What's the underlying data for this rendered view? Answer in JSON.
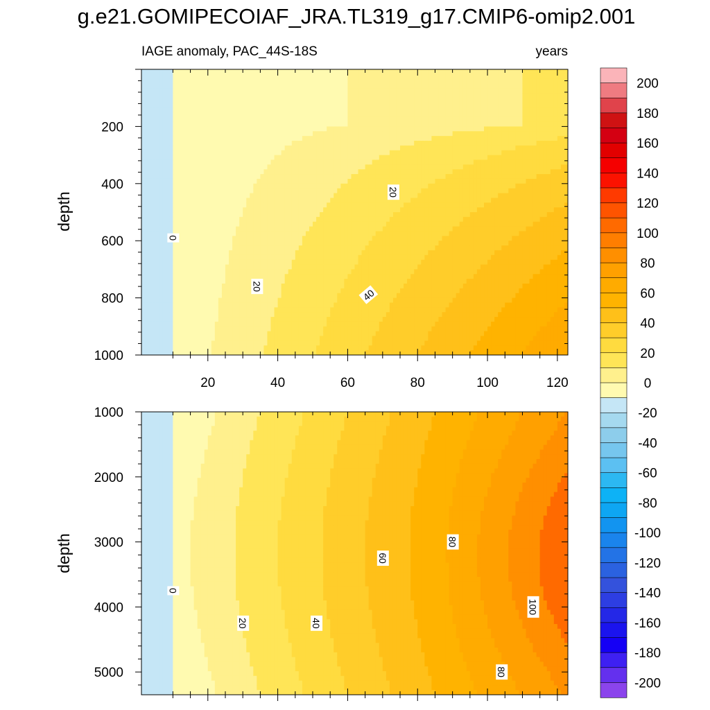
{
  "title": "g.e21.GOMIPECOIAF_JRA.TL319_g17.CMIP6-omip2.001",
  "chart_data": [
    {
      "type": "contour",
      "panel": "upper",
      "subtitle_left": "IAGE anomaly, PAC_44S-18S",
      "subtitle_right": "years",
      "ylabel": "depth",
      "xlim": [
        1,
        123
      ],
      "ylim": [
        0,
        1000
      ],
      "y_inverted": true,
      "xticks": [
        20,
        40,
        60,
        80,
        100,
        120
      ],
      "yticks": [
        200,
        400,
        600,
        800,
        1000
      ],
      "contour_levels": [
        0,
        10,
        20,
        30,
        40,
        50,
        60,
        70,
        80
      ],
      "contour_labels": [
        {
          "text": "0",
          "x": 10,
          "y": 590
        },
        {
          "text": "20",
          "x": 34,
          "y": 760
        },
        {
          "text": "20",
          "x": 73,
          "y": 430
        },
        {
          "text": "40",
          "x": 66,
          "y": 790
        }
      ],
      "field_samples": [
        {
          "x": 5,
          "y": 500,
          "value": -5
        },
        {
          "x": 60,
          "y": 150,
          "value": 3
        },
        {
          "x": 120,
          "y": 1000,
          "value": 82
        },
        {
          "x": 120,
          "y": 600,
          "value": 45
        },
        {
          "x": 60,
          "y": 1000,
          "value": 35
        }
      ]
    },
    {
      "type": "contour",
      "panel": "lower",
      "ylabel": "depth",
      "xlim": [
        1,
        123
      ],
      "ylim": [
        1000,
        5350
      ],
      "y_inverted": true,
      "xticks": [
        20,
        40,
        60,
        80,
        100,
        120
      ],
      "yticks": [
        1000,
        2000,
        3000,
        4000,
        5000
      ],
      "contour_levels": [
        0,
        10,
        20,
        30,
        40,
        50,
        60,
        70,
        80,
        90,
        100
      ],
      "contour_labels": [
        {
          "text": "0",
          "x": 10,
          "y": 3750
        },
        {
          "text": "20",
          "x": 30,
          "y": 4250
        },
        {
          "text": "40",
          "x": 51,
          "y": 4250
        },
        {
          "text": "60",
          "x": 70,
          "y": 3250
        },
        {
          "text": "80",
          "x": 90,
          "y": 3000
        },
        {
          "text": "100",
          "x": 113,
          "y": 4000
        },
        {
          "text": "80",
          "x": 104,
          "y": 5000
        }
      ],
      "field_samples": [
        {
          "x": 5,
          "y": 3000,
          "value": -5
        },
        {
          "x": 60,
          "y": 3000,
          "value": 55
        },
        {
          "x": 115,
          "y": 3000,
          "value": 105
        },
        {
          "x": 115,
          "y": 1000,
          "value": 95
        },
        {
          "x": 120,
          "y": 5300,
          "value": 82
        }
      ]
    }
  ],
  "colorbar": {
    "labels": [
      "200",
      "180",
      "160",
      "140",
      "120",
      "100",
      "80",
      "60",
      "40",
      "20",
      "0",
      "-20",
      "-40",
      "-60",
      "-80",
      "-100",
      "-120",
      "-140",
      "-160",
      "-180",
      "-200"
    ],
    "colors": [
      "#fbb4b9",
      "#ef7b81",
      "#e0434b",
      "#cf1213",
      "#d40012",
      "#e20000",
      "#f50000",
      "#fc1200",
      "#ff3a00",
      "#ff5400",
      "#ff6a00",
      "#ff7e00",
      "#ff8f00",
      "#ffa000",
      "#ffab00",
      "#ffb300",
      "#ffc019",
      "#ffcd2a",
      "#ffdb3f",
      "#ffe557",
      "#fff08d",
      "#fffab0",
      "#c5e6f6",
      "#a5d9ef",
      "#8dcdeb",
      "#76c6ee",
      "#5cc0f2",
      "#2cb8f2",
      "#0db2f6",
      "#0ea6f3",
      "#1294f0",
      "#1a84ec",
      "#2373e6",
      "#2b62e0",
      "#3452dc",
      "#2d3ee2",
      "#2428e7",
      "#1b14ee",
      "#1500f5",
      "#3e20f2",
      "#6430ee",
      "#8b44ec"
    ]
  },
  "field_colors": {
    "negative": "#c5e6f6",
    "b0_10": "#fffab0",
    "b10_20": "#fff08d",
    "b20_30": "#ffe557",
    "b30_40": "#ffdb3f",
    "b40_50": "#ffcd2a",
    "b50_60": "#ffc019",
    "b60_70": "#ffb300",
    "b70_80": "#ffab00",
    "b80_90": "#ffa000",
    "b90_100": "#ff8f00",
    "b100_110": "#ff6a00"
  }
}
